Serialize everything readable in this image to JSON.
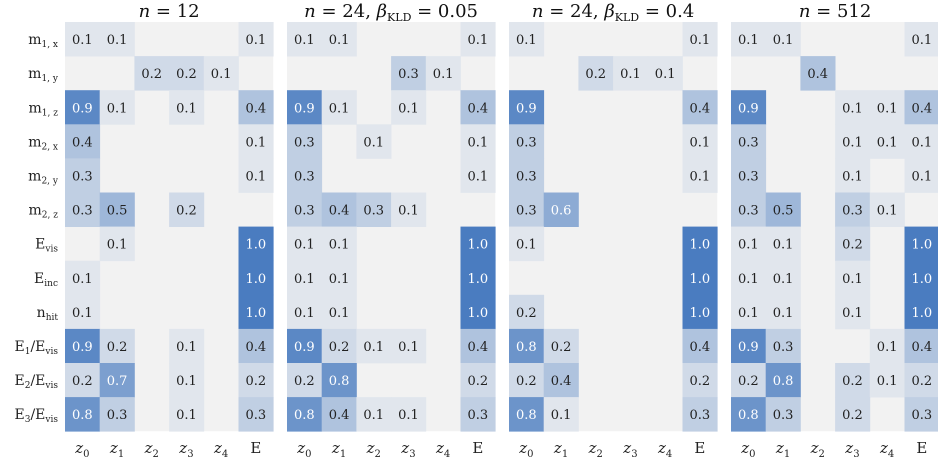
{
  "chart_data": {
    "type": "heatmap",
    "row_labels": [
      "m1,x",
      "m1,y",
      "m1,z",
      "m2,x",
      "m2,y",
      "m2,z",
      "Evis",
      "Einc",
      "nhit",
      "E1/Evis",
      "E2/Evis",
      "E3/Evis"
    ],
    "row_labels_rich": [
      [
        "m",
        "1, x"
      ],
      [
        "m",
        "1, y"
      ],
      [
        "m",
        "1, z"
      ],
      [
        "m",
        "2, x"
      ],
      [
        "m",
        "2, y"
      ],
      [
        "m",
        "2, z"
      ],
      [
        "E",
        "vis"
      ],
      [
        "E",
        "inc"
      ],
      [
        "n",
        "hit"
      ],
      [
        "E",
        "1",
        "/E",
        "vis"
      ],
      [
        "E",
        "2",
        "/E",
        "vis"
      ],
      [
        "E",
        "3",
        "/E",
        "vis"
      ]
    ],
    "column_labels": [
      {
        "base": "z",
        "sub": "0"
      },
      {
        "base": "z",
        "sub": "1"
      },
      {
        "base": "z",
        "sub": "2"
      },
      {
        "base": "z",
        "sub": "3"
      },
      {
        "base": "z",
        "sub": "4"
      },
      {
        "base": "E",
        "sub": ""
      }
    ],
    "color_scale": {
      "low": "#f2f2f2",
      "high": "#4a7cc0",
      "vmax": 1.0
    },
    "panels": [
      {
        "title": "n = 12",
        "title_parts": {
          "lhs": "n",
          "rhs": "12",
          "beta": "",
          "beta_value": ""
        },
        "values": [
          [
            0.1,
            0.1,
            null,
            null,
            null,
            0.1
          ],
          [
            null,
            null,
            0.2,
            0.2,
            0.1,
            null
          ],
          [
            0.9,
            0.1,
            null,
            0.1,
            null,
            0.4
          ],
          [
            0.4,
            null,
            null,
            null,
            null,
            0.1
          ],
          [
            0.3,
            null,
            null,
            null,
            null,
            0.1
          ],
          [
            0.3,
            0.5,
            null,
            0.2,
            null,
            null
          ],
          [
            null,
            0.1,
            null,
            null,
            null,
            1.0
          ],
          [
            0.1,
            null,
            null,
            null,
            null,
            1.0
          ],
          [
            0.1,
            null,
            null,
            null,
            null,
            1.0
          ],
          [
            0.9,
            0.2,
            null,
            0.1,
            null,
            0.4
          ],
          [
            0.2,
            0.7,
            null,
            0.1,
            null,
            0.2
          ],
          [
            0.8,
            0.3,
            null,
            0.1,
            null,
            0.3
          ]
        ]
      },
      {
        "title": "n = 24, βKLD = 0.05",
        "title_parts": {
          "lhs": "n",
          "rhs": "24",
          "beta": "β",
          "beta_sub": "KLD",
          "beta_value": "0.05"
        },
        "values": [
          [
            0.1,
            0.1,
            null,
            null,
            null,
            0.1
          ],
          [
            null,
            null,
            null,
            0.3,
            0.1,
            null
          ],
          [
            0.9,
            0.1,
            null,
            0.1,
            null,
            0.4
          ],
          [
            0.3,
            null,
            0.1,
            null,
            null,
            0.1
          ],
          [
            0.3,
            null,
            null,
            null,
            null,
            0.1
          ],
          [
            0.3,
            0.4,
            0.3,
            0.1,
            null,
            null
          ],
          [
            0.1,
            0.1,
            null,
            null,
            null,
            1.0
          ],
          [
            0.1,
            0.1,
            null,
            null,
            null,
            1.0
          ],
          [
            0.1,
            0.1,
            null,
            null,
            null,
            1.0
          ],
          [
            0.9,
            0.2,
            0.1,
            0.1,
            null,
            0.4
          ],
          [
            0.2,
            0.8,
            null,
            null,
            null,
            0.2
          ],
          [
            0.8,
            0.4,
            0.1,
            0.1,
            null,
            0.3
          ]
        ]
      },
      {
        "title": "n = 24, βKLD = 0.4",
        "title_parts": {
          "lhs": "n",
          "rhs": "24",
          "beta": "β",
          "beta_sub": "KLD",
          "beta_value": "0.4"
        },
        "values": [
          [
            0.1,
            null,
            null,
            null,
            null,
            0.1
          ],
          [
            null,
            null,
            0.2,
            0.1,
            0.1,
            null
          ],
          [
            0.9,
            null,
            null,
            null,
            null,
            0.4
          ],
          [
            0.3,
            null,
            null,
            null,
            null,
            0.1
          ],
          [
            0.3,
            null,
            null,
            null,
            null,
            0.1
          ],
          [
            0.3,
            0.6,
            null,
            null,
            null,
            null
          ],
          [
            0.1,
            null,
            null,
            null,
            null,
            1.0
          ],
          [
            null,
            null,
            null,
            null,
            null,
            1.0
          ],
          [
            0.2,
            null,
            null,
            null,
            null,
            1.0
          ],
          [
            0.8,
            0.2,
            null,
            null,
            null,
            0.4
          ],
          [
            0.2,
            0.4,
            null,
            null,
            null,
            0.2
          ],
          [
            0.8,
            0.1,
            null,
            null,
            null,
            0.3
          ]
        ]
      },
      {
        "title": "n = 512",
        "title_parts": {
          "lhs": "n",
          "rhs": "512",
          "beta": "",
          "beta_value": ""
        },
        "values": [
          [
            0.1,
            0.1,
            null,
            null,
            null,
            0.1
          ],
          [
            null,
            null,
            0.4,
            null,
            null,
            null
          ],
          [
            0.9,
            null,
            null,
            0.1,
            0.1,
            0.4
          ],
          [
            0.3,
            null,
            null,
            0.1,
            0.1,
            0.1
          ],
          [
            0.3,
            null,
            null,
            0.1,
            null,
            0.1
          ],
          [
            0.3,
            0.5,
            null,
            0.3,
            0.1,
            null
          ],
          [
            0.1,
            0.1,
            null,
            0.2,
            null,
            1.0
          ],
          [
            0.1,
            0.1,
            null,
            0.1,
            null,
            1.0
          ],
          [
            0.1,
            0.1,
            null,
            0.1,
            null,
            1.0
          ],
          [
            0.9,
            0.3,
            null,
            null,
            0.1,
            0.4
          ],
          [
            0.2,
            0.8,
            null,
            0.2,
            0.1,
            0.2
          ],
          [
            0.8,
            0.3,
            null,
            0.2,
            null,
            0.3
          ]
        ]
      }
    ]
  }
}
